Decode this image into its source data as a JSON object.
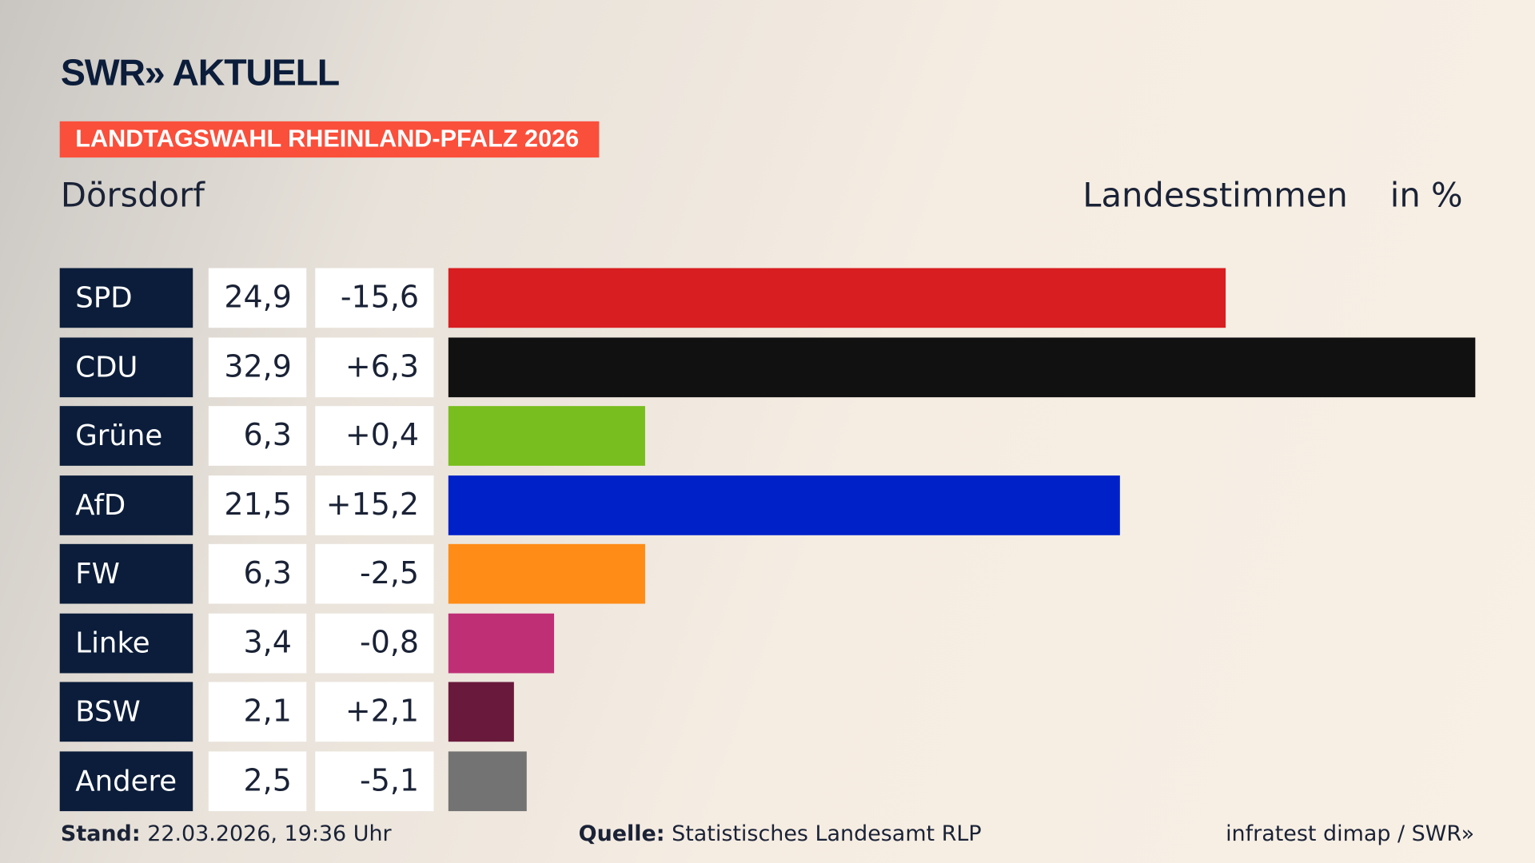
{
  "logo": "SWR» AKTUELL",
  "tag": "LANDTAGSWAHL RHEINLAND-PFALZ 2026",
  "place": "Dörsdorf",
  "header_type": "Landesstimmen",
  "header_unit": "in %",
  "chart_data": {
    "type": "bar",
    "orientation": "horizontal",
    "categories": [
      "SPD",
      "CDU",
      "Grüne",
      "AfD",
      "FW",
      "Linke",
      "BSW",
      "Andere"
    ],
    "values": [
      "24,9",
      "32,9",
      "6,3",
      "21,5",
      "6,3",
      "3,4",
      "2,1",
      "2,5"
    ],
    "changes": [
      "-15,6",
      "+6,3",
      "+0,4",
      "+15,2",
      "-2,5",
      "-0,8",
      "+2,1",
      "-5,1"
    ],
    "colors": [
      "#d81e20",
      "#111111",
      "#78be1e",
      "#0021c8",
      "#ff8c17",
      "#bf2f76",
      "#691a3c",
      "#737373"
    ],
    "xlim": [
      0,
      32.9
    ]
  },
  "footer": {
    "stand_label": "Stand:",
    "stand_value": "22.03.2026, 19:36 Uhr",
    "source_label": "Quelle:",
    "source_value": "Statistisches Landesamt RLP",
    "credit": "infratest dimap / SWR»"
  }
}
